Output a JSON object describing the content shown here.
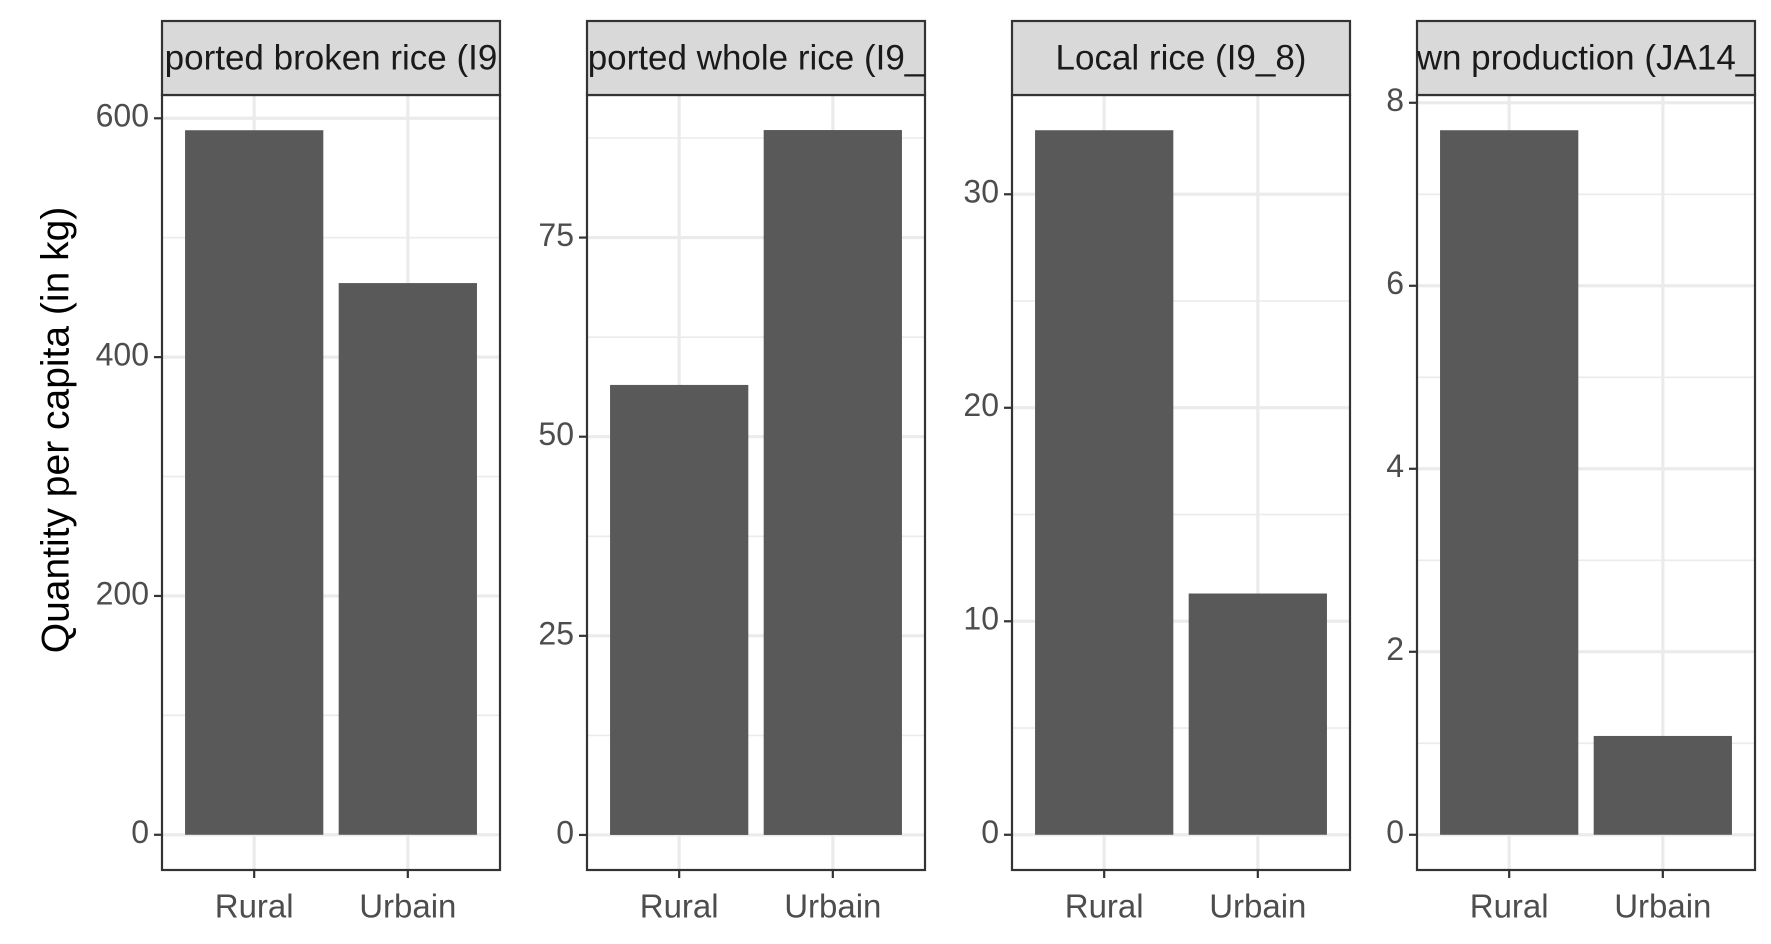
{
  "chart_data": {
    "type": "bar",
    "ylabel": "Quantity per capita (in kg)",
    "bar_color": "#595959",
    "strip_fill": "#d9d9d9",
    "grid_color": "#ebebeb",
    "panel_border_color": "#333333",
    "facets": [
      {
        "strip_label": "ported broken rice (I9",
        "categories": [
          "Rural",
          "Urbain"
        ],
        "values": [
          590,
          462
        ],
        "ylim": [
          -29.5,
          619.5
        ],
        "yticks": [
          0,
          200,
          400,
          600
        ],
        "ytick_labels": [
          "0",
          "200",
          "400",
          "600"
        ],
        "yminor": [
          100,
          300,
          500
        ]
      },
      {
        "strip_label": "ported whole rice (I9_",
        "categories": [
          "Rural",
          "Urbain"
        ],
        "values": [
          56.5,
          88.5
        ],
        "ylim": [
          -4.4,
          92.9
        ],
        "yticks": [
          0,
          25,
          50,
          75
        ],
        "ytick_labels": [
          "0",
          "25",
          "50",
          "75"
        ],
        "yminor": [
          12.5,
          37.5,
          62.5,
          87.5
        ]
      },
      {
        "strip_label": "Local rice (I9_8)",
        "categories": [
          "Rural",
          "Urbain"
        ],
        "values": [
          33,
          11.3
        ],
        "ylim": [
          -1.65,
          34.65
        ],
        "yticks": [
          0,
          10,
          20,
          30
        ],
        "ytick_labels": [
          "0",
          "10",
          "20",
          "30"
        ],
        "yminor": [
          5,
          15,
          25
        ]
      },
      {
        "strip_label": "wn production (JA14_",
        "categories": [
          "Rural",
          "Urbain"
        ],
        "values": [
          7.7,
          1.08
        ],
        "ylim": [
          -0.385,
          8.085
        ],
        "yticks": [
          0,
          2,
          4,
          6,
          8
        ],
        "ytick_labels": [
          "0",
          "2",
          "4",
          "6",
          "8"
        ],
        "yminor": [
          1,
          3,
          5,
          7
        ]
      }
    ]
  }
}
